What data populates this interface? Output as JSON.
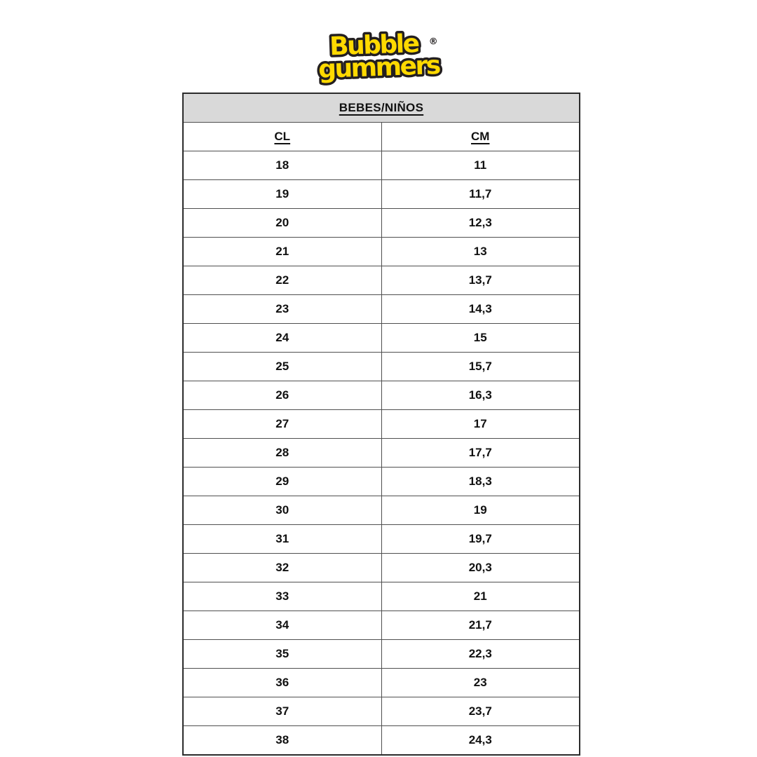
{
  "page": {
    "background": "#ffffff"
  },
  "logo": {
    "word1": "Bubble",
    "word2": "gummers",
    "registered_mark": "®",
    "fill": "#FFD900",
    "outline": "#231f20"
  },
  "chart_data": {
    "type": "table",
    "title": "BEBES/NIÑOS",
    "columns": [
      "CL",
      "CM"
    ],
    "rows": [
      [
        "18",
        "11"
      ],
      [
        "19",
        "11,7"
      ],
      [
        "20",
        "12,3"
      ],
      [
        "21",
        "13"
      ],
      [
        "22",
        "13,7"
      ],
      [
        "23",
        "14,3"
      ],
      [
        "24",
        "15"
      ],
      [
        "25",
        "15,7"
      ],
      [
        "26",
        "16,3"
      ],
      [
        "27",
        "17"
      ],
      [
        "28",
        "17,7"
      ],
      [
        "29",
        "18,3"
      ],
      [
        "30",
        "19"
      ],
      [
        "31",
        "19,7"
      ],
      [
        "32",
        "20,3"
      ],
      [
        "33",
        "21"
      ],
      [
        "34",
        "21,7"
      ],
      [
        "35",
        "22,3"
      ],
      [
        "36",
        "23"
      ],
      [
        "37",
        "23,7"
      ],
      [
        "38",
        "24,3"
      ]
    ],
    "header_bg": "#d9d9d9",
    "border_color": "#4f4f4f"
  }
}
